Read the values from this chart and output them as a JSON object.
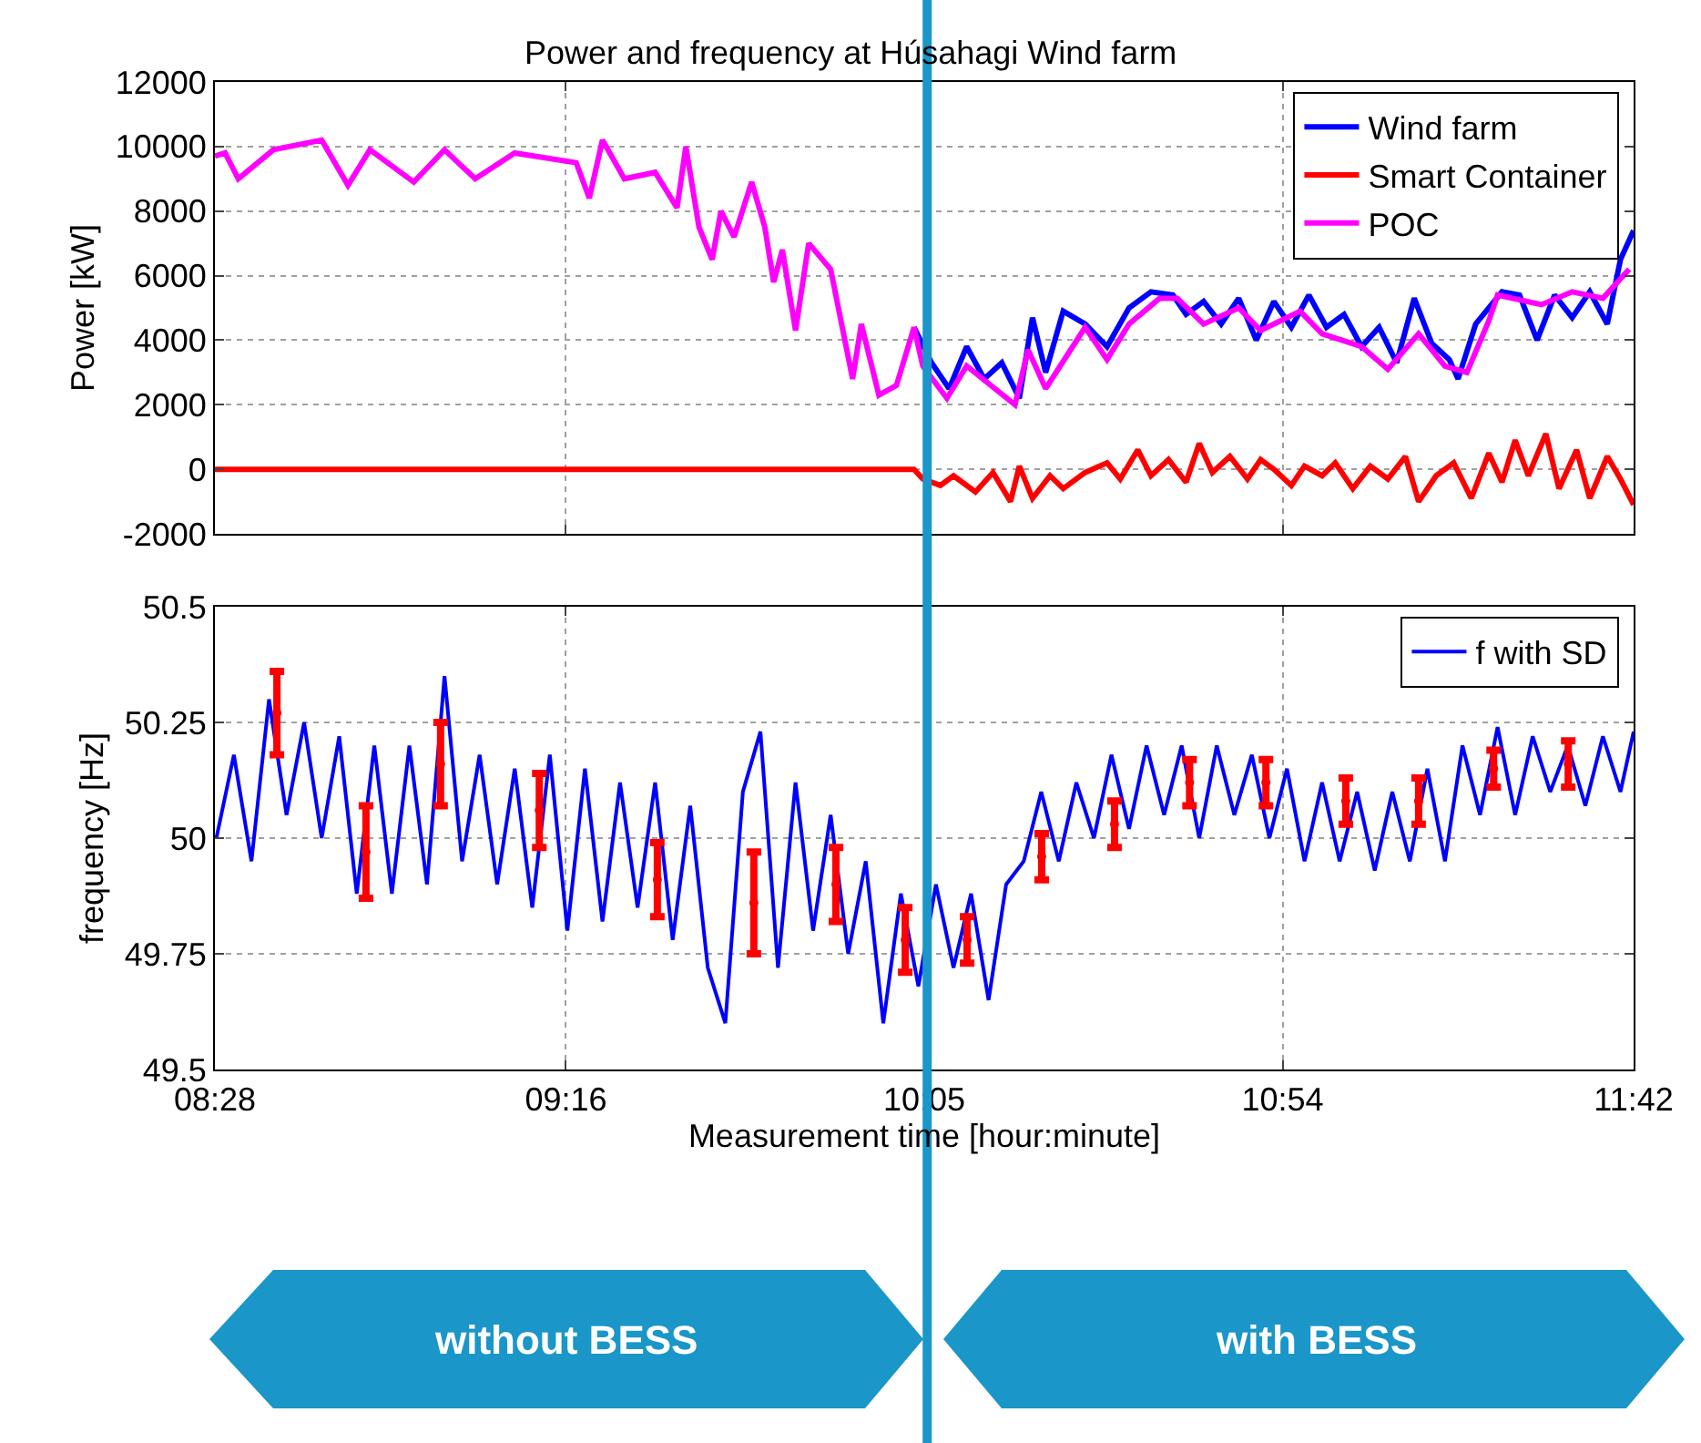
{
  "chart_data": [
    {
      "type": "line",
      "title": "Power and frequency at Húsahagi Wind farm",
      "ylabel": "Power [kW]",
      "xlim": [
        8.4667,
        11.7
      ],
      "xticks": [
        {
          "value": 8.4667,
          "label": null
        },
        {
          "value": 9.2667,
          "label": null
        },
        {
          "value": 10.0833,
          "label": null
        },
        {
          "value": 10.9,
          "label": null
        },
        {
          "value": 11.7,
          "label": null
        }
      ],
      "ylim": [
        -2000,
        12000
      ],
      "yticks": [
        -2000,
        0,
        2000,
        4000,
        6000,
        8000,
        10000,
        12000
      ],
      "tick_labels": "y",
      "grid": true,
      "legend": "top right",
      "ref_lines": [
        {
          "axis": "x",
          "value": 10.09,
          "color": "#1a96c8"
        }
      ],
      "series": [
        {
          "name": "Wind farm",
          "color": "#0000ff",
          "x": [
            10.06,
            10.1,
            10.14,
            10.18,
            10.22,
            10.26,
            10.3,
            10.33,
            10.36,
            10.4,
            10.45,
            10.5,
            10.55,
            10.6,
            10.65,
            10.68,
            10.72,
            10.76,
            10.8,
            10.84,
            10.88,
            10.92,
            10.96,
            11.0,
            11.04,
            11.08,
            11.12,
            11.16,
            11.2,
            11.24,
            11.28,
            11.3,
            11.34,
            11.4,
            11.44,
            11.48,
            11.52,
            11.56,
            11.6,
            11.64,
            11.67,
            11.7
          ],
          "values": [
            4400,
            3300,
            2500,
            3800,
            2800,
            3300,
            2200,
            4700,
            3000,
            4900,
            4500,
            3800,
            5000,
            5500,
            5400,
            4800,
            5200,
            4500,
            5300,
            4000,
            5200,
            4400,
            5400,
            4400,
            4800,
            3800,
            4400,
            3300,
            5300,
            3900,
            3400,
            2800,
            4500,
            5500,
            5400,
            4000,
            5400,
            4700,
            5500,
            4500,
            6500,
            7400
          ]
        },
        {
          "name": "Smart Container",
          "color": "#ff0000",
          "x": [
            8.4667,
            10.06,
            10.08,
            10.12,
            10.15,
            10.2,
            10.24,
            10.28,
            10.3,
            10.33,
            10.37,
            10.4,
            10.45,
            10.5,
            10.53,
            10.57,
            10.6,
            10.64,
            10.68,
            10.71,
            10.74,
            10.78,
            10.82,
            10.85,
            10.88,
            10.92,
            10.95,
            10.99,
            11.02,
            11.06,
            11.1,
            11.14,
            11.18,
            11.21,
            11.25,
            11.29,
            11.33,
            11.37,
            11.4,
            11.43,
            11.46,
            11.5,
            11.53,
            11.57,
            11.6,
            11.64,
            11.67,
            11.7
          ],
          "values": [
            0,
            0,
            -300,
            -500,
            -200,
            -700,
            -100,
            -1000,
            100,
            -900,
            -200,
            -600,
            -100,
            200,
            -300,
            600,
            -200,
            300,
            -400,
            800,
            -100,
            400,
            -300,
            300,
            0,
            -500,
            100,
            -200,
            200,
            -600,
            100,
            -300,
            400,
            -1000,
            -200,
            200,
            -900,
            500,
            -400,
            900,
            -200,
            1100,
            -600,
            600,
            -900,
            400,
            -300,
            -1100
          ]
        },
        {
          "name": "POC",
          "color": "#ff00ff",
          "x": [
            8.4667,
            8.49,
            8.52,
            8.6,
            8.71,
            8.77,
            8.82,
            8.92,
            8.99,
            9.06,
            9.15,
            9.29,
            9.32,
            9.35,
            9.4,
            9.47,
            9.52,
            9.54,
            9.57,
            9.6,
            9.62,
            9.65,
            9.69,
            9.72,
            9.74,
            9.76,
            9.79,
            9.82,
            9.87,
            9.92,
            9.94,
            9.98,
            10.02,
            10.06,
            10.08,
            10.135,
            10.18,
            10.29,
            10.32,
            10.36,
            10.45,
            10.5,
            10.55,
            10.62,
            10.66,
            10.72,
            10.8,
            10.85,
            10.94,
            10.99,
            11.08,
            11.14,
            11.21,
            11.27,
            11.32,
            11.37,
            11.39,
            11.49,
            11.56,
            11.63,
            11.69
          ],
          "values": [
            9700,
            9800,
            9000,
            9900,
            10200,
            8800,
            9900,
            8900,
            9900,
            9000,
            9800,
            9500,
            8400,
            10200,
            9000,
            9200,
            8100,
            10000,
            7500,
            6500,
            8000,
            7200,
            8900,
            7500,
            5800,
            6800,
            4300,
            7000,
            6200,
            2800,
            4500,
            2300,
            2600,
            4400,
            3200,
            2200,
            3200,
            2000,
            3700,
            2500,
            4400,
            3400,
            4500,
            5300,
            5300,
            4500,
            5000,
            4300,
            4900,
            4200,
            3800,
            3100,
            4200,
            3200,
            3000,
            4600,
            5400,
            5100,
            5500,
            5300,
            6200
          ]
        }
      ]
    },
    {
      "type": "line",
      "xlabel": "Measurement time [hour:minute]",
      "ylabel": "frequency [Hz]",
      "xlim": [
        8.4667,
        11.7
      ],
      "xticks": [
        {
          "value": 8.4667,
          "label": "08:28"
        },
        {
          "value": 9.2667,
          "label": "09:16"
        },
        {
          "value": 10.0833,
          "label": "10:05"
        },
        {
          "value": 10.9,
          "label": "10:54"
        },
        {
          "value": 11.7,
          "label": "11:42"
        }
      ],
      "ylim": [
        49.5,
        50.5
      ],
      "yticks": [
        49.5,
        49.75,
        50,
        50.25,
        50.5
      ],
      "grid": true,
      "legend": "top right",
      "annotations": [
        "without BESS",
        "with BESS"
      ],
      "series": [
        {
          "name": "f with SD",
          "color": "#0000ff",
          "x": [
            8.47,
            8.51,
            8.55,
            8.59,
            8.63,
            8.67,
            8.71,
            8.75,
            8.79,
            8.83,
            8.87,
            8.91,
            8.95,
            8.99,
            9.03,
            9.07,
            9.11,
            9.15,
            9.19,
            9.23,
            9.27,
            9.31,
            9.35,
            9.39,
            9.43,
            9.47,
            9.51,
            9.55,
            9.59,
            9.63,
            9.67,
            9.71,
            9.75,
            9.79,
            9.83,
            9.87,
            9.91,
            9.95,
            9.99,
            10.03,
            10.07,
            10.11,
            10.15,
            10.19,
            10.23,
            10.27,
            10.31,
            10.35,
            10.39,
            10.43,
            10.47,
            10.51,
            10.55,
            10.59,
            10.63,
            10.67,
            10.71,
            10.75,
            10.79,
            10.83,
            10.87,
            10.91,
            10.95,
            10.99,
            11.03,
            11.07,
            11.11,
            11.15,
            11.19,
            11.23,
            11.27,
            11.31,
            11.35,
            11.39,
            11.43,
            11.47,
            11.51,
            11.55,
            11.59,
            11.63,
            11.67,
            11.7
          ],
          "values": [
            50.0,
            50.18,
            49.95,
            50.3,
            50.05,
            50.25,
            50.0,
            50.22,
            49.88,
            50.2,
            49.88,
            50.2,
            49.9,
            50.35,
            49.95,
            50.18,
            49.9,
            50.15,
            49.85,
            50.18,
            49.8,
            50.15,
            49.82,
            50.12,
            49.85,
            50.12,
            49.78,
            50.07,
            49.72,
            49.6,
            50.1,
            50.23,
            49.72,
            50.12,
            49.8,
            50.05,
            49.75,
            49.95,
            49.6,
            49.88,
            49.68,
            49.9,
            49.72,
            49.88,
            49.65,
            49.9,
            49.95,
            50.1,
            49.95,
            50.12,
            50.0,
            50.18,
            50.02,
            50.2,
            50.05,
            50.2,
            50.0,
            50.2,
            50.05,
            50.18,
            50.0,
            50.15,
            49.95,
            50.12,
            49.95,
            50.1,
            49.93,
            50.1,
            49.95,
            50.15,
            49.95,
            50.2,
            50.05,
            50.24,
            50.05,
            50.22,
            50.1,
            50.2,
            50.07,
            50.22,
            50.1,
            50.23
          ]
        },
        {
          "type": "scatter",
          "color": "#ff0000",
          "x": [
            8.608,
            8.811,
            8.981,
            9.206,
            9.475,
            9.695,
            9.882,
            10.04,
            10.181,
            10.351,
            10.517,
            10.688,
            10.862,
            11.044,
            11.21,
            11.381,
            11.551
          ],
          "values": [
            50.27,
            49.97,
            50.16,
            50.06,
            49.91,
            49.86,
            49.9,
            49.78,
            49.78,
            49.96,
            50.03,
            50.12,
            50.12,
            50.08,
            50.08,
            50.15,
            50.16
          ],
          "errors": [
            0.09,
            0.1,
            0.09,
            0.08,
            0.08,
            0.11,
            0.08,
            0.07,
            0.05,
            0.05,
            0.05,
            0.05,
            0.05,
            0.05,
            0.05,
            0.04,
            0.05
          ]
        }
      ]
    }
  ]
}
